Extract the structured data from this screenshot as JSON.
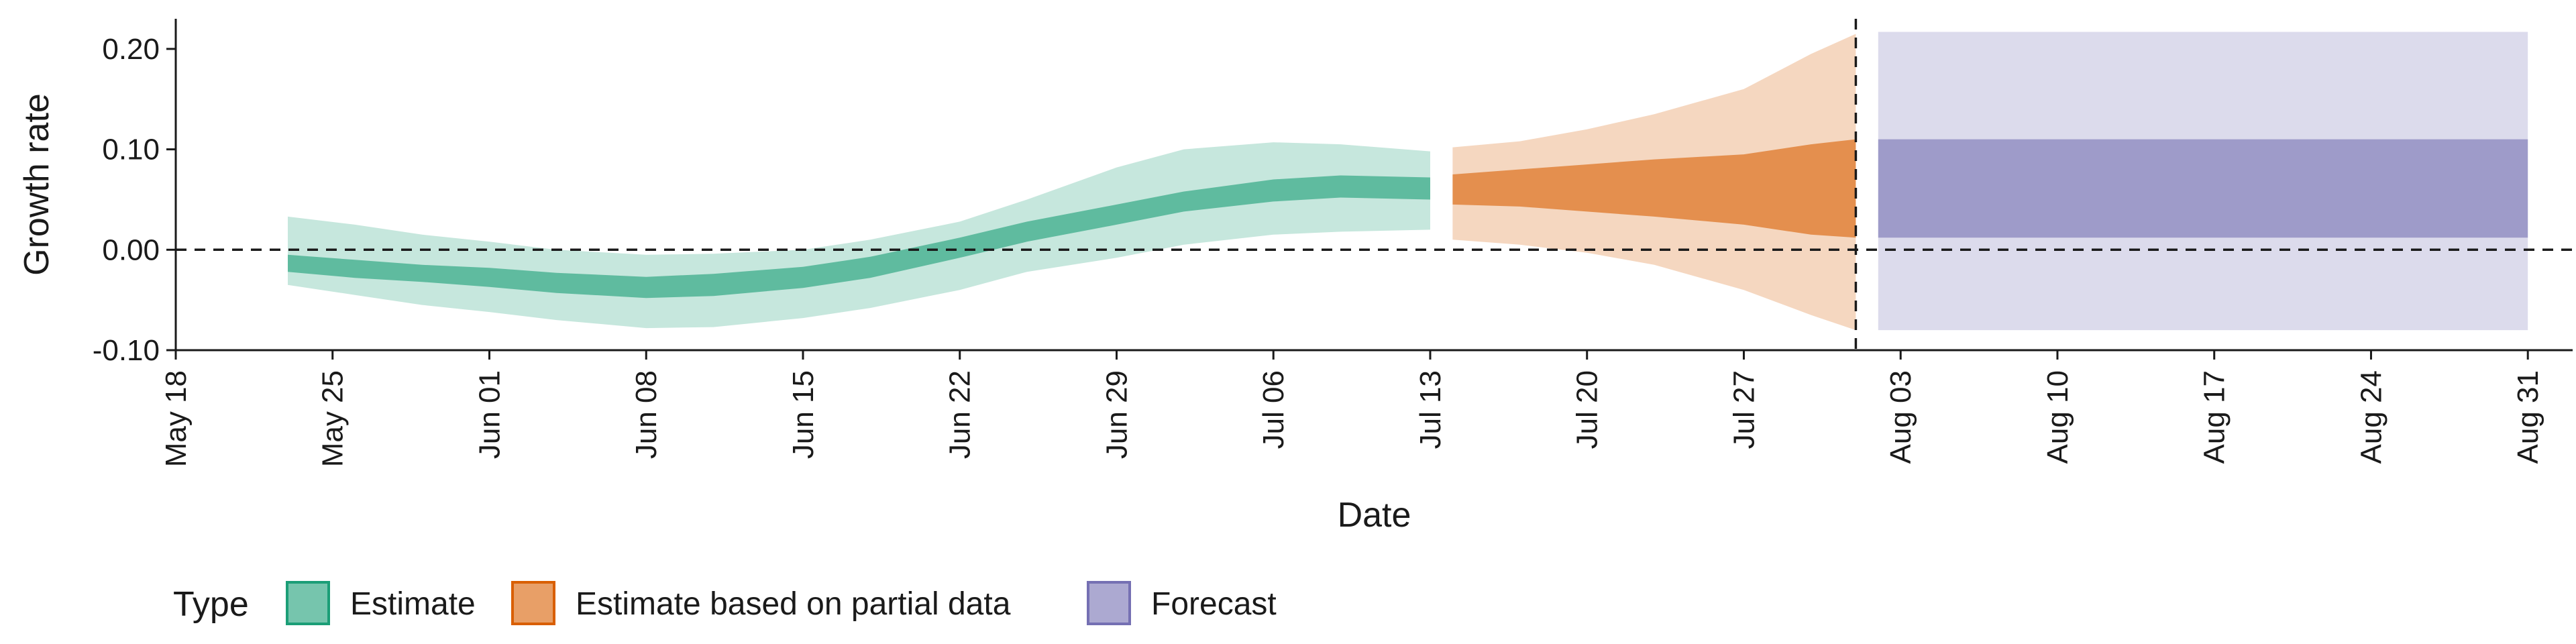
{
  "chart_data": {
    "type": "area",
    "xlabel": "Date",
    "ylabel": "Growth rate",
    "xlim": [
      "2022-05-18",
      "2022-09-02"
    ],
    "ylim": [
      -0.1,
      0.23
    ],
    "x_ticks": [
      "2022-05-18",
      "2022-05-25",
      "2022-06-01",
      "2022-06-08",
      "2022-06-15",
      "2022-06-22",
      "2022-06-29",
      "2022-07-06",
      "2022-07-13",
      "2022-07-20",
      "2022-07-27",
      "2022-08-03",
      "2022-08-10",
      "2022-08-17",
      "2022-08-24",
      "2022-08-31"
    ],
    "x_tick_labels": [
      "May 18",
      "May 25",
      "Jun 01",
      "Jun 08",
      "Jun 15",
      "Jun 22",
      "Jun 29",
      "Jul 06",
      "Jul 13",
      "Jul 20",
      "Jul 27",
      "Aug 03",
      "Aug 10",
      "Aug 17",
      "Aug 24",
      "Aug 31"
    ],
    "y_ticks": [
      -0.1,
      0.0,
      0.1,
      0.2
    ],
    "y_tick_labels": [
      "-0.10",
      "0.00",
      "0.10",
      "0.20"
    ],
    "reference_lines": {
      "y": 0.0,
      "x": "2022-08-01"
    },
    "legend": {
      "title": "Type",
      "position": "bottom-left",
      "entries": [
        "Estimate",
        "Estimate based on partial data",
        "Forecast"
      ]
    },
    "colors": {
      "Estimate": "#1b9e77",
      "Estimate based on partial data": "#d95f02",
      "Forecast": "#7570b3"
    },
    "series": [
      {
        "name": "Estimate",
        "points": [
          {
            "x": "2022-05-23",
            "outer": [
              -0.035,
              0.033
            ],
            "inner": [
              -0.022,
              -0.005
            ]
          },
          {
            "x": "2022-05-26",
            "outer": [
              -0.045,
              0.025
            ],
            "inner": [
              -0.028,
              -0.01
            ]
          },
          {
            "x": "2022-05-29",
            "outer": [
              -0.055,
              0.015
            ],
            "inner": [
              -0.032,
              -0.015
            ]
          },
          {
            "x": "2022-06-01",
            "outer": [
              -0.062,
              0.008
            ],
            "inner": [
              -0.037,
              -0.018
            ]
          },
          {
            "x": "2022-06-04",
            "outer": [
              -0.07,
              0.0
            ],
            "inner": [
              -0.043,
              -0.023
            ]
          },
          {
            "x": "2022-06-08",
            "outer": [
              -0.078,
              -0.005
            ],
            "inner": [
              -0.048,
              -0.027
            ]
          },
          {
            "x": "2022-06-11",
            "outer": [
              -0.077,
              -0.004
            ],
            "inner": [
              -0.046,
              -0.024
            ]
          },
          {
            "x": "2022-06-15",
            "outer": [
              -0.068,
              0.0
            ],
            "inner": [
              -0.038,
              -0.017
            ]
          },
          {
            "x": "2022-06-18",
            "outer": [
              -0.058,
              0.01
            ],
            "inner": [
              -0.028,
              -0.007
            ]
          },
          {
            "x": "2022-06-22",
            "outer": [
              -0.04,
              0.028
            ],
            "inner": [
              -0.008,
              0.012
            ]
          },
          {
            "x": "2022-06-25",
            "outer": [
              -0.022,
              0.05
            ],
            "inner": [
              0.008,
              0.028
            ]
          },
          {
            "x": "2022-06-29",
            "outer": [
              -0.008,
              0.082
            ],
            "inner": [
              0.025,
              0.045
            ]
          },
          {
            "x": "2022-07-02",
            "outer": [
              0.005,
              0.1
            ],
            "inner": [
              0.038,
              0.058
            ]
          },
          {
            "x": "2022-07-06",
            "outer": [
              0.015,
              0.107
            ],
            "inner": [
              0.048,
              0.07
            ]
          },
          {
            "x": "2022-07-09",
            "outer": [
              0.018,
              0.105
            ],
            "inner": [
              0.052,
              0.074
            ]
          },
          {
            "x": "2022-07-13",
            "outer": [
              0.02,
              0.098
            ],
            "inner": [
              0.05,
              0.072
            ]
          }
        ]
      },
      {
        "name": "Estimate based on partial data",
        "points": [
          {
            "x": "2022-07-14",
            "outer": [
              0.01,
              0.102
            ],
            "inner": [
              0.045,
              0.075
            ]
          },
          {
            "x": "2022-07-17",
            "outer": [
              0.005,
              0.108
            ],
            "inner": [
              0.043,
              0.08
            ]
          },
          {
            "x": "2022-07-20",
            "outer": [
              -0.003,
              0.12
            ],
            "inner": [
              0.038,
              0.085
            ]
          },
          {
            "x": "2022-07-23",
            "outer": [
              -0.015,
              0.135
            ],
            "inner": [
              0.033,
              0.09
            ]
          },
          {
            "x": "2022-07-27",
            "outer": [
              -0.04,
              0.16
            ],
            "inner": [
              0.025,
              0.095
            ]
          },
          {
            "x": "2022-07-30",
            "outer": [
              -0.065,
              0.195
            ],
            "inner": [
              0.015,
              0.105
            ]
          },
          {
            "x": "2022-08-01",
            "outer": [
              -0.08,
              0.215
            ],
            "inner": [
              0.012,
              0.11
            ]
          }
        ]
      },
      {
        "name": "Forecast",
        "points": [
          {
            "x": "2022-08-02",
            "outer": [
              -0.08,
              0.217
            ],
            "inner": [
              0.012,
              0.11
            ]
          },
          {
            "x": "2022-08-31",
            "outer": [
              -0.08,
              0.217
            ],
            "inner": [
              0.012,
              0.11
            ]
          }
        ]
      }
    ]
  }
}
